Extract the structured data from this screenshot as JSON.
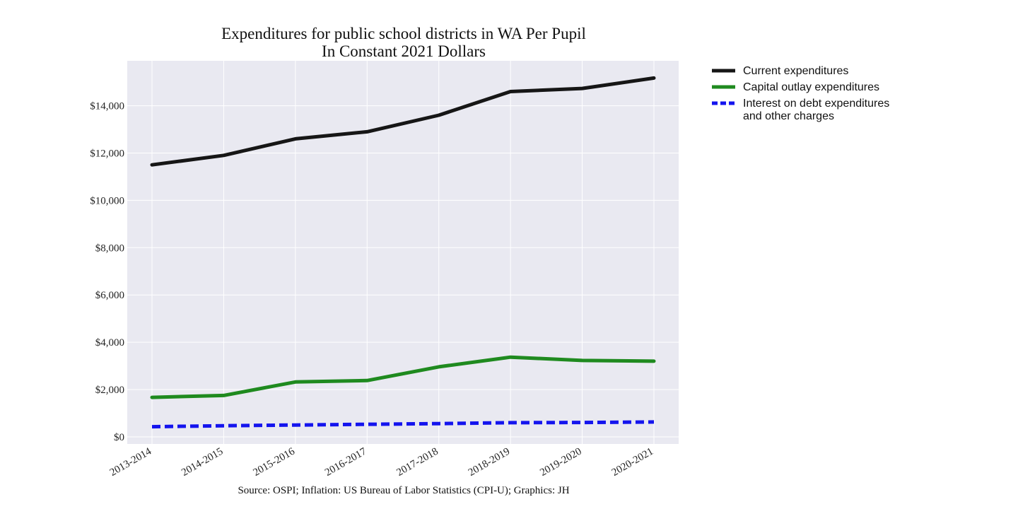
{
  "chart_data": {
    "type": "line",
    "title": "Expenditures for public school districts in WA Per Pupil",
    "subtitle": "In Constant 2021 Dollars",
    "source": "Source: OSPI; Inflation: US Bureau of Labor Statistics (CPI-U); Graphics: JH",
    "categories": [
      "2013-2014",
      "2014-2015",
      "2015-2016",
      "2016-2017",
      "2017-2018",
      "2018-2019",
      "2019-2020",
      "2020-2021"
    ],
    "y_ticks": [
      0,
      2000,
      4000,
      6000,
      8000,
      10000,
      12000,
      14000
    ],
    "y_tick_labels": [
      "$0",
      "$2,000",
      "$4,000",
      "$6,000",
      "$8,000",
      "$10,000",
      "$12,000",
      "$14,000"
    ],
    "ylim": [
      -300,
      15900
    ],
    "grid": true,
    "legend_position": "outside-right-top",
    "background_color": "#e9e9f1",
    "series": [
      {
        "name": "Current expenditures",
        "legend_lines": [
          "Current expenditures"
        ],
        "color": "#161616",
        "style": "solid",
        "values": [
          11500,
          11900,
          12600,
          12900,
          13600,
          14600,
          14730,
          15170
        ]
      },
      {
        "name": "Capital outlay expenditures",
        "legend_lines": [
          "Capital outlay expenditures"
        ],
        "color": "#1f8a1f",
        "style": "solid",
        "values": [
          1670,
          1750,
          2320,
          2380,
          2960,
          3370,
          3230,
          3200
        ]
      },
      {
        "name": "Interest on debt expenditures and other charges",
        "legend_lines": [
          "Interest on debt expenditures",
          "and other charges"
        ],
        "color": "#1414ee",
        "style": "dashed",
        "values": [
          430,
          470,
          500,
          530,
          560,
          600,
          610,
          630
        ]
      }
    ]
  }
}
